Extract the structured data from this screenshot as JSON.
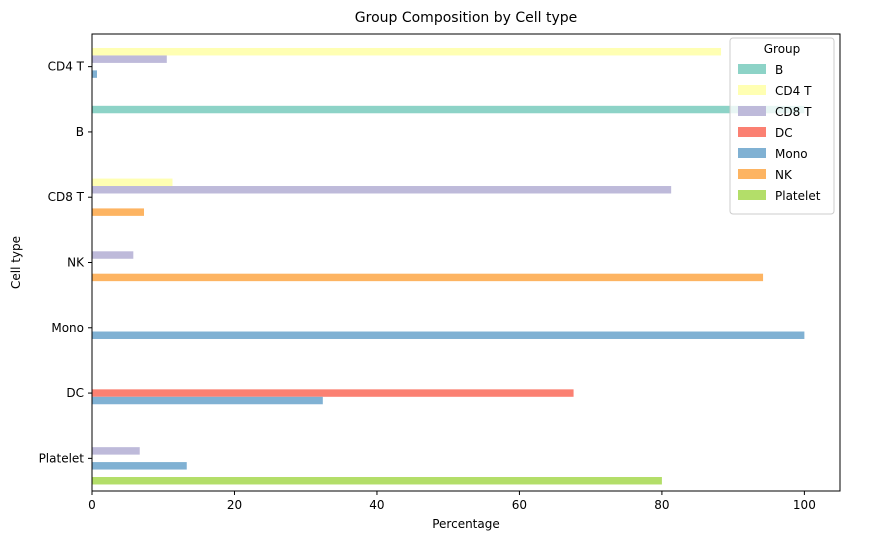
{
  "chart_data": {
    "type": "bar",
    "orientation": "horizontal",
    "title": "Group Composition by Cell type",
    "xlabel": "Percentage",
    "ylabel": "Cell type",
    "xlim": [
      0,
      105
    ],
    "xticks": [
      0,
      20,
      40,
      60,
      80,
      100
    ],
    "grid": false,
    "legend": {
      "title": "Group",
      "placement": "top-right"
    },
    "categories": [
      "CD4 T",
      "B",
      "CD8 T",
      "NK",
      "Mono",
      "DC",
      "Platelet"
    ],
    "series": [
      {
        "name": "B",
        "color": "#8dd3c7",
        "values": [
          0,
          100,
          0,
          0,
          0,
          0,
          0
        ]
      },
      {
        "name": "CD4 T",
        "color": "#ffffb3",
        "values": [
          88.3,
          0,
          11.3,
          0,
          0,
          0,
          0
        ]
      },
      {
        "name": "CD8 T",
        "color": "#bebada",
        "values": [
          10.5,
          0,
          81.3,
          5.8,
          0,
          0,
          6.7
        ]
      },
      {
        "name": "DC",
        "color": "#fb8072",
        "values": [
          0,
          0,
          0,
          0,
          0,
          67.6,
          0
        ]
      },
      {
        "name": "Mono",
        "color": "#80b1d3",
        "values": [
          0.7,
          0,
          0,
          0,
          100,
          32.4,
          13.3
        ]
      },
      {
        "name": "NK",
        "color": "#fdb462",
        "values": [
          0,
          0,
          7.3,
          94.2,
          0,
          0,
          0
        ]
      },
      {
        "name": "Platelet",
        "color": "#b3de69",
        "values": [
          0,
          0,
          0,
          0,
          0,
          0,
          80
        ]
      }
    ]
  }
}
